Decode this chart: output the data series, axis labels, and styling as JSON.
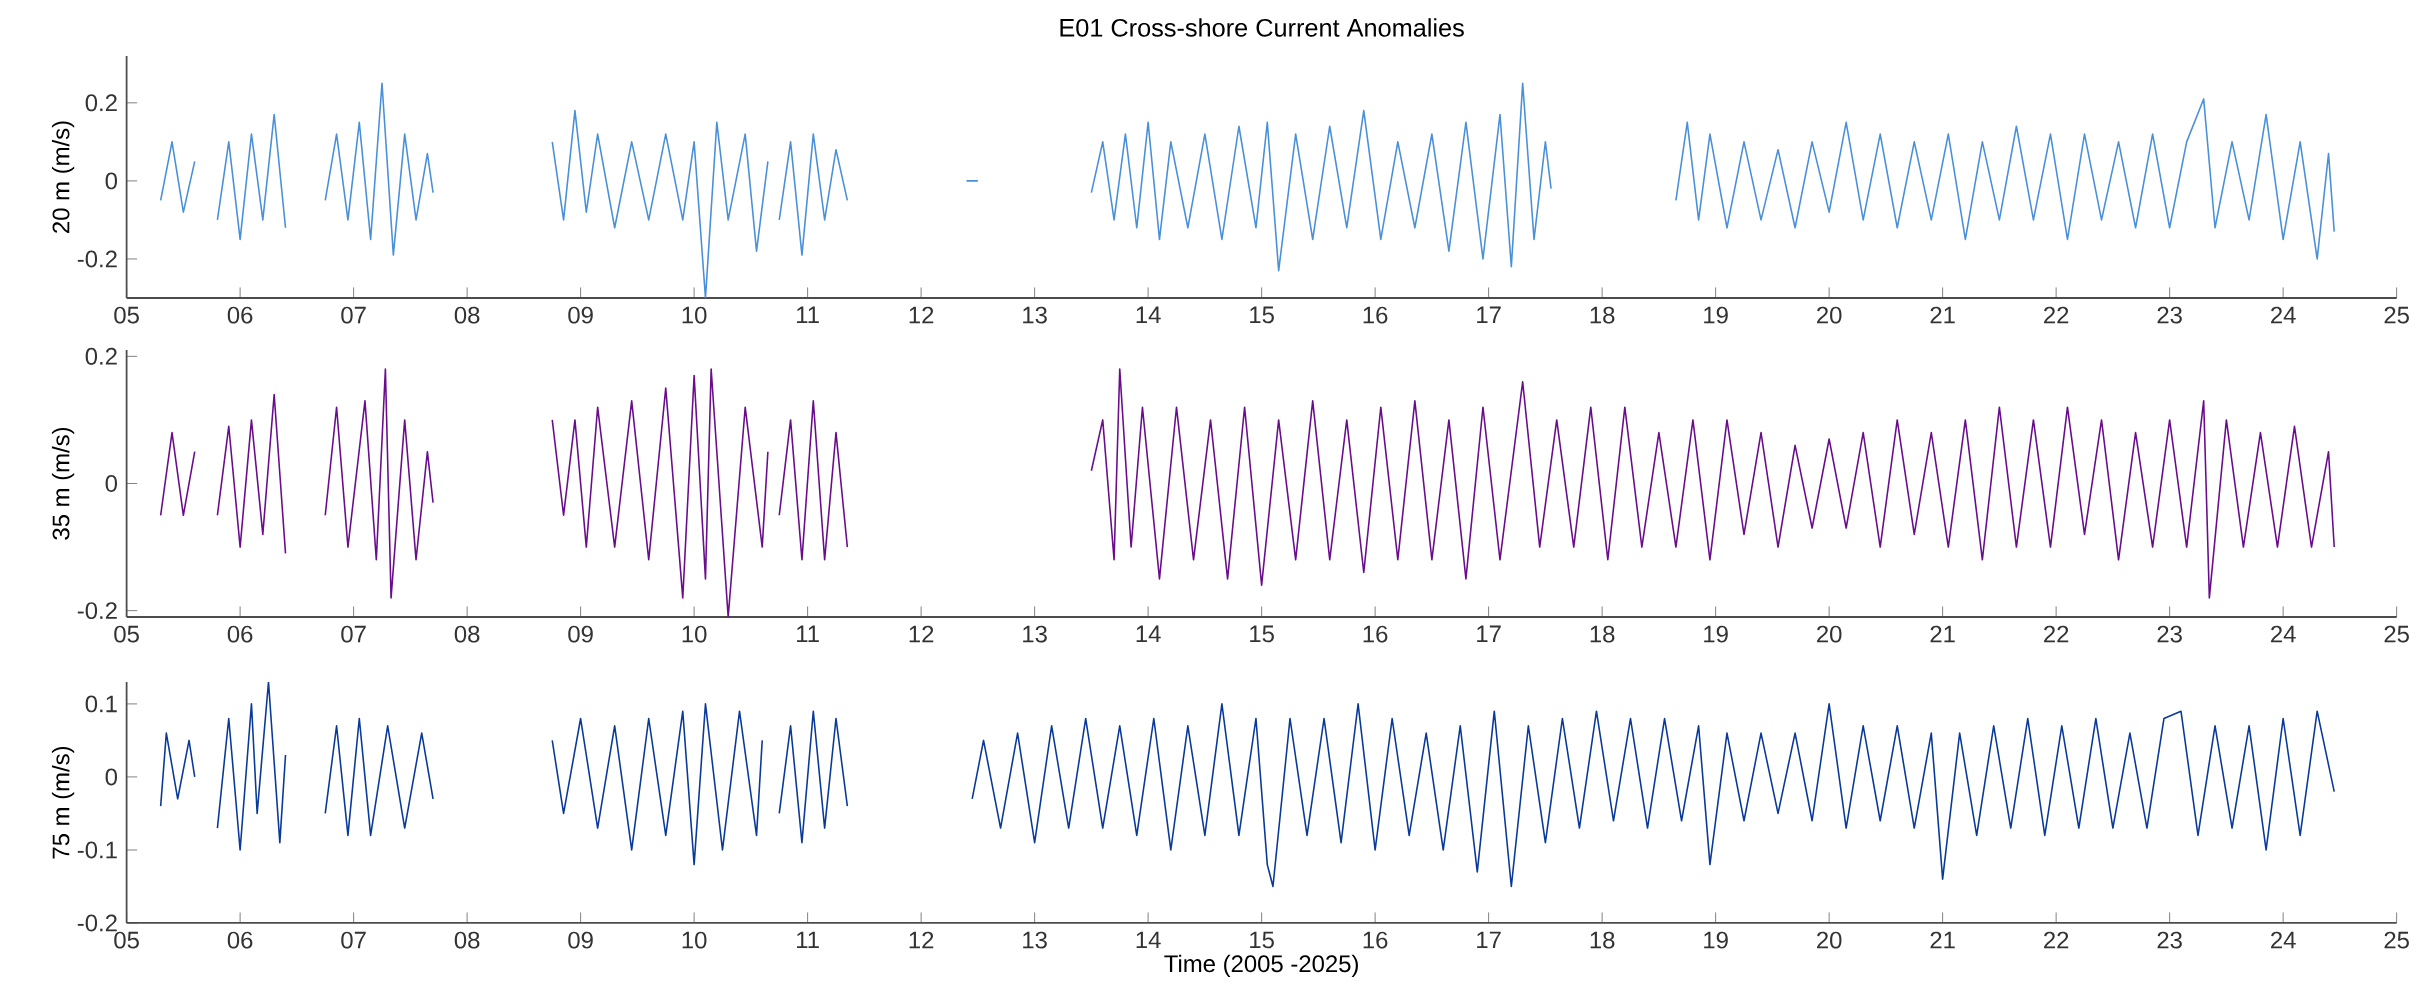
{
  "chart_data": [
    {
      "type": "line",
      "title": "E01 Cross-shore Current Anomalies",
      "ylabel": "20 m (m/s)",
      "x": [
        5.3,
        5.4,
        5.5,
        5.6,
        5.65,
        5.8,
        5.9,
        6.0,
        6.1,
        6.2,
        6.3,
        6.4,
        6.5,
        6.75,
        6.85,
        6.95,
        7.05,
        7.15,
        7.25,
        7.35,
        7.45,
        7.55,
        7.65,
        7.7,
        8.0,
        8.75,
        8.85,
        8.95,
        9.05,
        9.15,
        9.3,
        9.45,
        9.6,
        9.75,
        9.9,
        10.0,
        10.1,
        10.2,
        10.3,
        10.45,
        10.55,
        10.65,
        10.7,
        10.75,
        10.85,
        10.95,
        11.05,
        11.15,
        11.25,
        11.35,
        11.5,
        12.4,
        12.5,
        12.6,
        13.5,
        13.6,
        13.7,
        13.8,
        13.9,
        14.0,
        14.1,
        14.2,
        14.35,
        14.5,
        14.65,
        14.8,
        14.95,
        15.05,
        15.15,
        15.3,
        15.45,
        15.6,
        15.75,
        15.9,
        16.05,
        16.2,
        16.35,
        16.5,
        16.65,
        16.8,
        16.95,
        17.1,
        17.2,
        17.3,
        17.4,
        17.5,
        17.55,
        17.7,
        18.65,
        18.75,
        18.85,
        18.95,
        19.1,
        19.25,
        19.4,
        19.55,
        19.7,
        19.85,
        20.0,
        20.15,
        20.3,
        20.45,
        20.6,
        20.75,
        20.9,
        21.05,
        21.2,
        21.35,
        21.5,
        21.65,
        21.8,
        21.95,
        22.1,
        22.25,
        22.4,
        22.55,
        22.7,
        22.85,
        23.0,
        23.15,
        23.3,
        23.4,
        23.55,
        23.7,
        23.85,
        24.0,
        24.15,
        24.3,
        24.4,
        24.45
      ],
      "series": [
        {
          "color": "#4a90d9",
          "values": [
            -0.05,
            0.1,
            -0.08,
            0.05,
            null,
            -0.1,
            0.1,
            -0.15,
            0.12,
            -0.1,
            0.17,
            -0.12,
            null,
            -0.05,
            0.12,
            -0.1,
            0.15,
            -0.15,
            0.25,
            -0.19,
            0.12,
            -0.1,
            0.07,
            -0.03,
            null,
            0.1,
            -0.1,
            0.18,
            -0.08,
            0.12,
            -0.12,
            0.1,
            -0.1,
            0.12,
            -0.1,
            0.1,
            -0.3,
            0.15,
            -0.1,
            0.12,
            -0.18,
            0.05,
            null,
            -0.1,
            0.1,
            -0.19,
            0.12,
            -0.1,
            0.08,
            -0.05,
            null,
            0.0,
            0.0,
            null,
            -0.03,
            0.1,
            -0.1,
            0.12,
            -0.12,
            0.15,
            -0.15,
            0.1,
            -0.12,
            0.12,
            -0.15,
            0.14,
            -0.12,
            0.15,
            -0.23,
            0.12,
            -0.15,
            0.14,
            -0.12,
            0.18,
            -0.15,
            0.1,
            -0.12,
            0.12,
            -0.18,
            0.15,
            -0.2,
            0.17,
            -0.22,
            0.25,
            -0.15,
            0.1,
            -0.02,
            null,
            -0.05,
            0.15,
            -0.1,
            0.12,
            -0.12,
            0.1,
            -0.1,
            0.08,
            -0.12,
            0.1,
            -0.08,
            0.15,
            -0.1,
            0.12,
            -0.12,
            0.1,
            -0.1,
            0.12,
            -0.15,
            0.1,
            -0.1,
            0.14,
            -0.1,
            0.12,
            -0.15,
            0.12,
            -0.1,
            0.1,
            -0.12,
            0.12,
            -0.12,
            0.1,
            0.21,
            -0.12,
            0.1,
            -0.1,
            0.17,
            -0.15,
            0.1,
            -0.2,
            0.07,
            -0.13
          ]
        }
      ],
      "xlim": [
        5,
        25
      ],
      "xticks": [
        {
          "value": 5,
          "label": "05"
        },
        {
          "value": 6,
          "label": "06"
        },
        {
          "value": 7,
          "label": "07"
        },
        {
          "value": 8,
          "label": "08"
        },
        {
          "value": 9,
          "label": "09"
        },
        10,
        11,
        12,
        13,
        14,
        15,
        16,
        17,
        18,
        19,
        20,
        21,
        22,
        23,
        24,
        25
      ],
      "ylim": [
        -0.3,
        0.32
      ],
      "yticks": [
        -0.2,
        0,
        0.2
      ]
    },
    {
      "type": "line",
      "ylabel": "35 m (m/s)",
      "x": [
        5.3,
        5.4,
        5.5,
        5.6,
        5.65,
        5.8,
        5.9,
        6.0,
        6.1,
        6.2,
        6.3,
        6.4,
        6.5,
        6.75,
        6.85,
        6.95,
        7.1,
        7.2,
        7.28,
        7.33,
        7.45,
        7.55,
        7.65,
        7.7,
        8.0,
        8.75,
        8.85,
        8.95,
        9.05,
        9.15,
        9.3,
        9.45,
        9.6,
        9.75,
        9.9,
        10.0,
        10.1,
        10.15,
        10.3,
        10.45,
        10.6,
        10.65,
        10.7,
        10.75,
        10.85,
        10.95,
        11.05,
        11.15,
        11.25,
        11.35,
        11.5,
        13.5,
        13.6,
        13.7,
        13.75,
        13.85,
        13.95,
        14.1,
        14.25,
        14.4,
        14.55,
        14.7,
        14.85,
        15.0,
        15.15,
        15.3,
        15.45,
        15.6,
        15.75,
        15.9,
        16.05,
        16.2,
        16.35,
        16.5,
        16.65,
        16.8,
        16.95,
        17.1,
        17.3,
        17.45,
        17.6,
        17.75,
        17.9,
        18.05,
        18.2,
        18.35,
        18.5,
        18.65,
        18.8,
        18.95,
        19.1,
        19.25,
        19.4,
        19.55,
        19.7,
        19.85,
        20.0,
        20.15,
        20.3,
        20.45,
        20.6,
        20.75,
        20.9,
        21.05,
        21.2,
        21.35,
        21.5,
        21.65,
        21.8,
        21.95,
        22.1,
        22.25,
        22.4,
        22.55,
        22.7,
        22.85,
        23.0,
        23.15,
        23.3,
        23.35,
        23.5,
        23.65,
        23.8,
        23.95,
        24.1,
        24.25,
        24.4,
        24.45
      ],
      "series": [
        {
          "color": "#6a0d8c",
          "values": [
            -0.05,
            0.08,
            -0.05,
            0.05,
            null,
            -0.05,
            0.09,
            -0.1,
            0.1,
            -0.08,
            0.14,
            -0.11,
            null,
            -0.05,
            0.12,
            -0.1,
            0.13,
            -0.12,
            0.18,
            -0.18,
            0.1,
            -0.12,
            0.05,
            -0.03,
            null,
            0.1,
            -0.05,
            0.1,
            -0.1,
            0.12,
            -0.1,
            0.13,
            -0.12,
            0.15,
            -0.18,
            0.17,
            -0.15,
            0.18,
            -0.21,
            0.12,
            -0.1,
            0.05,
            null,
            -0.05,
            0.1,
            -0.12,
            0.13,
            -0.12,
            0.08,
            -0.1,
            null,
            0.02,
            0.1,
            -0.12,
            0.18,
            -0.1,
            0.12,
            -0.15,
            0.12,
            -0.12,
            0.1,
            -0.15,
            0.12,
            -0.16,
            0.1,
            -0.12,
            0.13,
            -0.12,
            0.1,
            -0.14,
            0.12,
            -0.12,
            0.13,
            -0.12,
            0.1,
            -0.15,
            0.12,
            -0.12,
            0.16,
            -0.1,
            0.1,
            -0.1,
            0.12,
            -0.12,
            0.12,
            -0.1,
            0.08,
            -0.1,
            0.1,
            -0.12,
            0.1,
            -0.08,
            0.08,
            -0.1,
            0.06,
            -0.07,
            0.07,
            -0.07,
            0.08,
            -0.1,
            0.1,
            -0.08,
            0.08,
            -0.1,
            0.1,
            -0.12,
            0.12,
            -0.1,
            0.1,
            -0.1,
            0.12,
            -0.08,
            0.1,
            -0.12,
            0.08,
            -0.1,
            0.1,
            -0.1,
            0.13,
            -0.18,
            0.1,
            -0.1,
            0.08,
            -0.1,
            0.09,
            -0.1,
            0.05,
            -0.1
          ]
        }
      ],
      "xlim": [
        5,
        25
      ],
      "xticks": [
        {
          "value": 5,
          "label": "05"
        },
        {
          "value": 6,
          "label": "06"
        },
        {
          "value": 7,
          "label": "07"
        },
        {
          "value": 8,
          "label": "08"
        },
        {
          "value": 9,
          "label": "09"
        },
        10,
        11,
        12,
        13,
        14,
        15,
        16,
        17,
        18,
        19,
        20,
        21,
        22,
        23,
        24,
        25
      ],
      "ylim": [
        -0.21,
        0.21
      ],
      "yticks": [
        -0.2,
        0,
        0.2
      ]
    },
    {
      "type": "line",
      "ylabel": "75 m (m/s)",
      "xlabel": "Time (2005 -2025)",
      "x": [
        5.3,
        5.35,
        5.45,
        5.55,
        5.6,
        5.7,
        5.8,
        5.9,
        6.0,
        6.1,
        6.15,
        6.25,
        6.35,
        6.4,
        6.5,
        6.75,
        6.85,
        6.95,
        7.05,
        7.15,
        7.3,
        7.45,
        7.6,
        7.7,
        8.0,
        8.75,
        8.85,
        9.0,
        9.15,
        9.3,
        9.45,
        9.6,
        9.75,
        9.9,
        10.0,
        10.1,
        10.25,
        10.4,
        10.55,
        10.6,
        10.7,
        10.75,
        10.85,
        10.95,
        11.05,
        11.15,
        11.25,
        11.35,
        11.5,
        12.45,
        12.55,
        12.7,
        12.85,
        13.0,
        13.15,
        13.3,
        13.45,
        13.6,
        13.75,
        13.9,
        14.05,
        14.2,
        14.35,
        14.5,
        14.65,
        14.8,
        14.95,
        15.05,
        15.1,
        15.25,
        15.4,
        15.55,
        15.7,
        15.85,
        16.0,
        16.15,
        16.3,
        16.45,
        16.6,
        16.75,
        16.9,
        17.05,
        17.2,
        17.35,
        17.5,
        17.65,
        17.8,
        17.95,
        18.1,
        18.25,
        18.4,
        18.55,
        18.7,
        18.85,
        18.95,
        19.1,
        19.25,
        19.4,
        19.55,
        19.7,
        19.85,
        20.0,
        20.15,
        20.3,
        20.45,
        20.6,
        20.75,
        20.9,
        21.0,
        21.15,
        21.3,
        21.45,
        21.6,
        21.75,
        21.9,
        22.05,
        22.2,
        22.35,
        22.5,
        22.65,
        22.8,
        22.95,
        23.1,
        23.25,
        23.4,
        23.55,
        23.7,
        23.85,
        24.0,
        24.15,
        24.3,
        24.45
      ],
      "series": [
        {
          "color": "#0a3a99",
          "values": [
            -0.04,
            0.06,
            -0.03,
            0.05,
            0.0,
            null,
            -0.07,
            0.08,
            -0.1,
            0.1,
            -0.05,
            0.13,
            -0.09,
            0.03,
            null,
            -0.05,
            0.07,
            -0.08,
            0.08,
            -0.08,
            0.07,
            -0.07,
            0.06,
            -0.03,
            null,
            0.05,
            -0.05,
            0.08,
            -0.07,
            0.07,
            -0.1,
            0.08,
            -0.08,
            0.09,
            -0.12,
            0.1,
            -0.1,
            0.09,
            -0.08,
            0.05,
            null,
            -0.05,
            0.07,
            -0.09,
            0.09,
            -0.07,
            0.08,
            -0.04,
            null,
            -0.03,
            0.05,
            -0.07,
            0.06,
            -0.09,
            0.07,
            -0.07,
            0.08,
            -0.07,
            0.07,
            -0.08,
            0.08,
            -0.1,
            0.07,
            -0.08,
            0.1,
            -0.08,
            0.08,
            -0.12,
            -0.15,
            0.08,
            -0.08,
            0.08,
            -0.09,
            0.1,
            -0.1,
            0.08,
            -0.08,
            0.06,
            -0.1,
            0.07,
            -0.13,
            0.09,
            -0.15,
            0.07,
            -0.09,
            0.08,
            -0.07,
            0.09,
            -0.06,
            0.08,
            -0.07,
            0.08,
            -0.06,
            0.07,
            -0.12,
            0.06,
            -0.06,
            0.06,
            -0.05,
            0.06,
            -0.06,
            0.1,
            -0.07,
            0.07,
            -0.06,
            0.07,
            -0.07,
            0.06,
            -0.14,
            0.06,
            -0.08,
            0.07,
            -0.07,
            0.08,
            -0.08,
            0.07,
            -0.07,
            0.08,
            -0.07,
            0.06,
            -0.07,
            0.08,
            0.09,
            -0.08,
            0.07,
            -0.07,
            0.07,
            -0.1,
            0.08,
            -0.08,
            0.09,
            -0.02
          ]
        }
      ],
      "xlim": [
        5,
        25
      ],
      "xticks": [
        {
          "value": 5,
          "label": "05"
        },
        {
          "value": 6,
          "label": "06"
        },
        {
          "value": 7,
          "label": "07"
        },
        {
          "value": 8,
          "label": "08"
        },
        {
          "value": 9,
          "label": "09"
        },
        10,
        11,
        12,
        13,
        14,
        15,
        16,
        17,
        18,
        19,
        20,
        21,
        22,
        23,
        24,
        25
      ],
      "ylim": [
        -0.2,
        0.13
      ],
      "yticks": [
        -0.2,
        -0.1,
        0,
        0.1
      ]
    }
  ]
}
